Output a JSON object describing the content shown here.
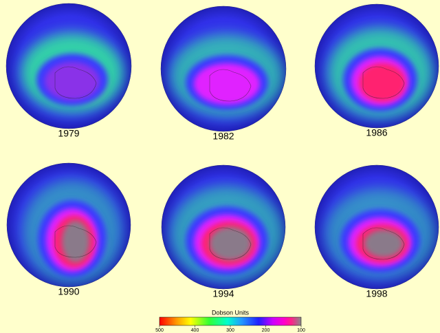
{
  "maps": [
    {
      "label": "1979"
    },
    {
      "label": "1982"
    },
    {
      "label": "1986"
    },
    {
      "label": "1990"
    },
    {
      "label": "1994"
    },
    {
      "label": "1998"
    }
  ],
  "colorbar": {
    "title": "Dobson Units",
    "ticks": [
      500,
      400,
      300,
      200,
      100
    ]
  }
}
